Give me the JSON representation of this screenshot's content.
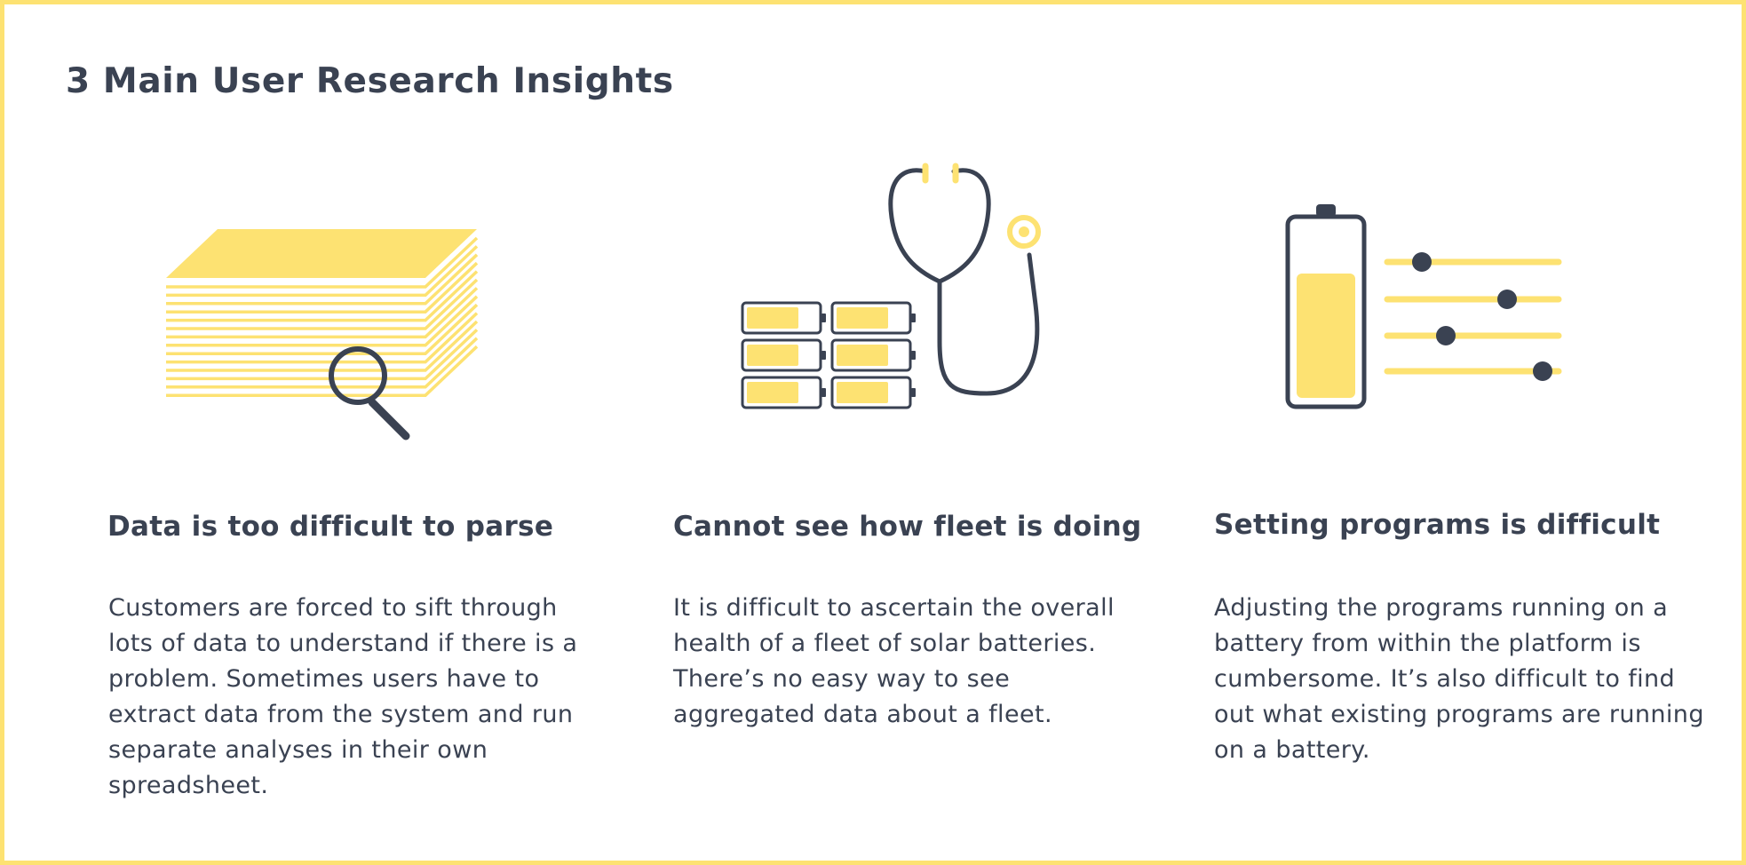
{
  "page": {
    "title": "3 Main User Research Insights"
  },
  "colors": {
    "accent_yellow": "#fde272",
    "ink": "#3a4252",
    "background": "#ffffff"
  },
  "insights": [
    {
      "icon": "paper-stack-magnifier-icon",
      "heading": "Data is too difficult to parse",
      "body": "Customers are forced to sift through lots of data to understand if there is a problem. Sometimes users have to extract data from the system and run separate analyses in their own spreadsheet."
    },
    {
      "icon": "stethoscope-batteries-icon",
      "heading": "Cannot see how fleet is doing",
      "body": "It is difficult to ascertain the overall health of a fleet of solar batteries. There’s no easy way to see aggregated data about a fleet."
    },
    {
      "icon": "battery-sliders-icon",
      "heading": "Setting programs is difficult",
      "body": "Adjusting the programs running on a battery from within the platform is cumbersome. It’s also difficult to find out what existing programs are running on a battery."
    }
  ]
}
